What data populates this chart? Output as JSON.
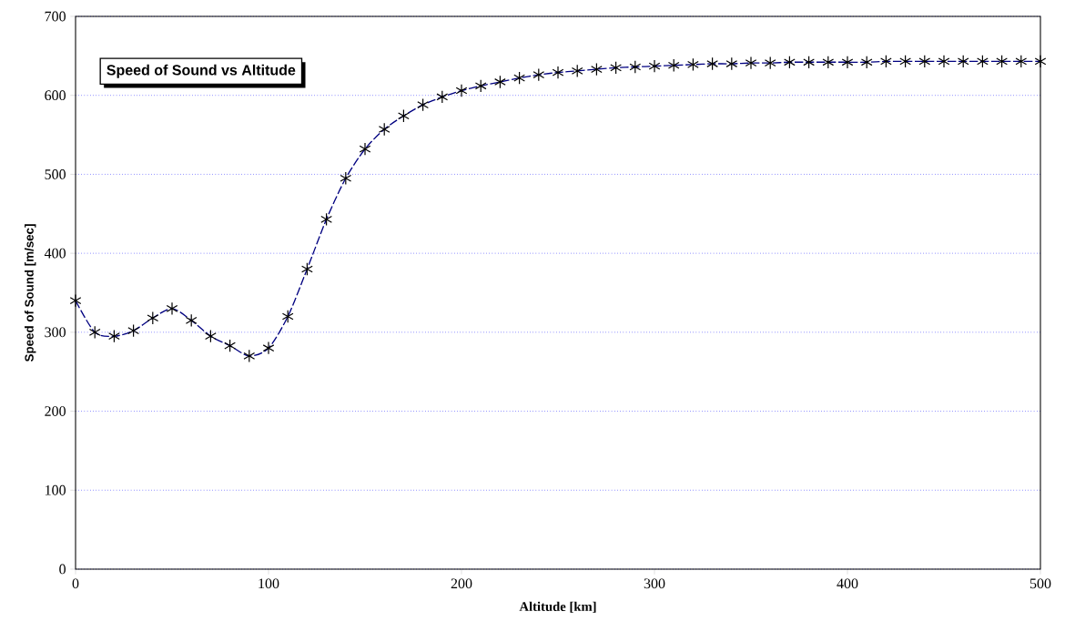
{
  "chart_data": {
    "type": "line",
    "title": "Speed of Sound  vs Altitude",
    "xlabel": "Altitude [km]",
    "ylabel": "Speed of Sound [m/sec]",
    "x": [
      0,
      10,
      20,
      30,
      40,
      50,
      60,
      70,
      80,
      90,
      100,
      110,
      120,
      130,
      140,
      150,
      160,
      170,
      180,
      190,
      200,
      210,
      220,
      230,
      240,
      250,
      260,
      270,
      280,
      290,
      300,
      310,
      320,
      330,
      340,
      350,
      360,
      370,
      380,
      390,
      400,
      410,
      420,
      430,
      440,
      450,
      460,
      470,
      480,
      490,
      500
    ],
    "series": [
      {
        "color": "#000080",
        "values": [
          340,
          300,
          295,
          302,
          318,
          330,
          315,
          295,
          283,
          270,
          280,
          320,
          380,
          443,
          495,
          532,
          557,
          574,
          588,
          598,
          606,
          612,
          617,
          622,
          626,
          629,
          631,
          633,
          635,
          636,
          637,
          638,
          639,
          640,
          640,
          641,
          641,
          642,
          642,
          642,
          642,
          642,
          643,
          643,
          643,
          643,
          643,
          643,
          643,
          643,
          643
        ]
      }
    ],
    "xlim": [
      0,
      500
    ],
    "ylim": [
      0,
      700
    ],
    "xticks": [
      0,
      100,
      200,
      300,
      400,
      500
    ],
    "yticks": [
      0,
      100,
      200,
      300,
      400,
      500,
      600,
      700
    ],
    "grid": "y",
    "marker": "cross",
    "line_style": "dashed"
  }
}
